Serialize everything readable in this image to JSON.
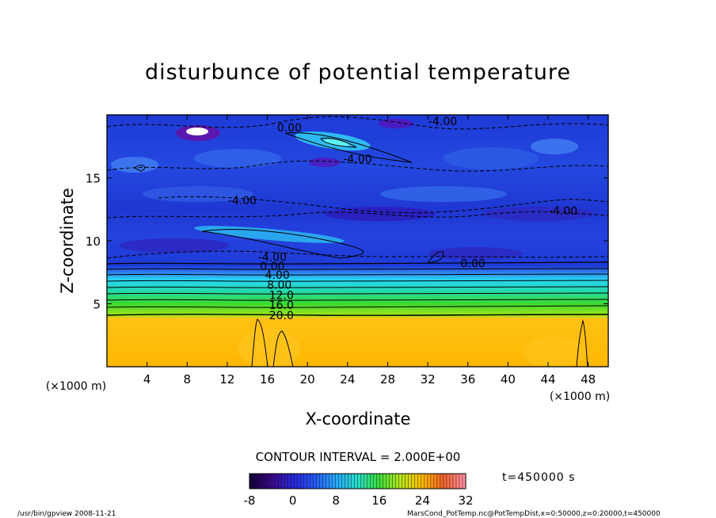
{
  "chart_data": {
    "type": "heatmap",
    "title": "disturbunce of potential temperature",
    "xlabel": "X-coordinate",
    "ylabel": "Z-coordinate",
    "x_unit": "(×1000 m)",
    "xlim": [
      0,
      50
    ],
    "ylim": [
      0,
      20
    ],
    "x_ticks": [
      4,
      8,
      12,
      16,
      20,
      24,
      28,
      32,
      36,
      40,
      44,
      48
    ],
    "y_ticks": [
      5,
      10,
      15
    ],
    "contour_interval_label": "CONTOUR INTERVAL = 2.000E+00",
    "contour_labels": [
      {
        "text": "0.00",
        "x": 18.2,
        "z": 19.0
      },
      {
        "text": "-4.00",
        "x": 33.5,
        "z": 19.5
      },
      {
        "text": "-4.00",
        "x": 25.0,
        "z": 16.5
      },
      {
        "text": "-4.00",
        "x": 13.5,
        "z": 13.2
      },
      {
        "text": "-4.00",
        "x": 45.5,
        "z": 12.4
      },
      {
        "text": "-4.00",
        "x": 16.5,
        "z": 8.7
      },
      {
        "text": "0.00",
        "x": 16.5,
        "z": 8.0
      },
      {
        "text": "0.00",
        "x": 36.5,
        "z": 8.2
      },
      {
        "text": "4.00",
        "x": 17.0,
        "z": 7.3
      },
      {
        "text": "8.00",
        "x": 17.2,
        "z": 6.5
      },
      {
        "text": "12.0",
        "x": 17.4,
        "z": 5.7
      },
      {
        "text": "16.0",
        "x": 17.4,
        "z": 4.9
      },
      {
        "text": "20.0",
        "x": 17.4,
        "z": 4.1
      }
    ],
    "colorbar": {
      "min": -8,
      "max": 32,
      "ticks": [
        -8,
        0,
        8,
        16,
        24,
        32
      ]
    },
    "time_label": "t=450000 s",
    "footer_left": "/usr/bin/gpview   2008-11-21",
    "footer_right": "MarsCond_PotTemp.nc@PotTempDist,x=0:50000,z=0:20000,t=450000",
    "colors": {
      "layer_top": "#1d3fdd",
      "layer_mid_dark": "#2a1fc0",
      "cyan": "#28e0f0",
      "green": "#2fdc39",
      "yellow_green": "#a3e81a",
      "orange": "#ffbb00",
      "orange_light": "#ffc21a"
    }
  }
}
